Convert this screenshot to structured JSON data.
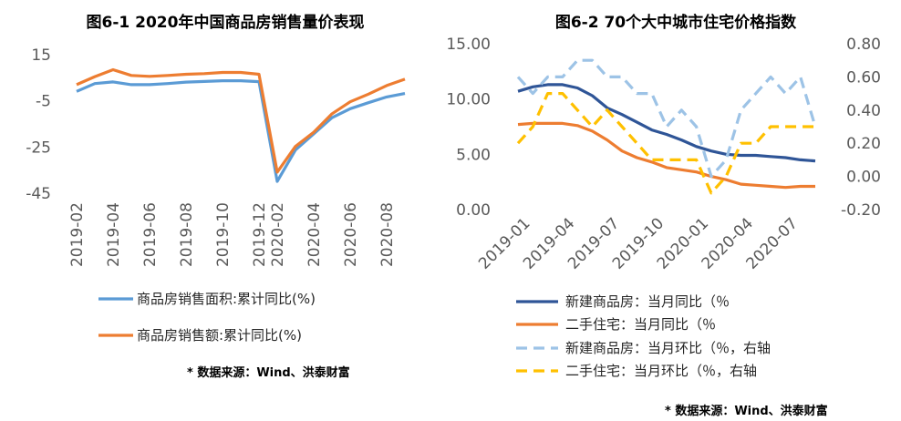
{
  "chart_data": [
    {
      "type": "line",
      "title": "图6-1 2020年中国商品房销售量价表现",
      "categories": [
        "2019-02",
        "2019-03",
        "2019-04",
        "2019-05",
        "2019-06",
        "2019-07",
        "2019-08",
        "2019-09",
        "2019-10",
        "2019-11",
        "2019-12",
        "2020-02",
        "2020-03",
        "2020-04",
        "2020-05",
        "2020-06",
        "2020-07",
        "2020-08",
        "2020-09"
      ],
      "tick_labels": [
        "2019-02",
        "2019-04",
        "2019-06",
        "2019-08",
        "2019-10",
        "2019-12",
        "2020-02",
        "2020-04",
        "2020-06",
        "2020-08"
      ],
      "yticks": [
        "15",
        "-5",
        "-25",
        "-45"
      ],
      "ylim": [
        -45,
        15
      ],
      "series": [
        {
          "name": "商品房销售面积:累计同比(%)",
          "color": "#5B9BD5",
          "values": [
            -0.9,
            2.5,
            3.2,
            2.0,
            2.0,
            2.5,
            3.1,
            3.4,
            3.7,
            3.7,
            3.3,
            -39.9,
            -26.3,
            -19.3,
            -12.3,
            -8.4,
            -5.8,
            -3.3,
            -1.8
          ]
        },
        {
          "name": "商品房销售额:累计同比(%)",
          "color": "#ED7D31",
          "values": [
            2.0,
            5.5,
            8.5,
            6.0,
            5.6,
            6.0,
            6.5,
            6.8,
            7.3,
            7.3,
            6.5,
            -35.9,
            -24.7,
            -18.6,
            -10.6,
            -5.4,
            -2.1,
            1.6,
            4.4
          ]
        }
      ],
      "source": "* 数据来源：Wind、洪泰财富"
    },
    {
      "type": "line",
      "title": "图6-2 70个大中城市住宅价格指数",
      "categories": [
        "2019-01",
        "2019-02",
        "2019-03",
        "2019-04",
        "2019-05",
        "2019-06",
        "2019-07",
        "2019-08",
        "2019-09",
        "2019-10",
        "2019-11",
        "2019-12",
        "2020-01",
        "2020-02",
        "2020-03",
        "2020-04",
        "2020-05",
        "2020-06",
        "2020-07",
        "2020-08",
        "2020-09"
      ],
      "tick_labels": [
        "2019-01",
        "2019-04",
        "2019-07",
        "2019-10",
        "2020-01",
        "2020-04",
        "2020-07"
      ],
      "yticks_left": [
        "15.00",
        "10.00",
        "5.00",
        "0.00"
      ],
      "yticks_right": [
        "0.80",
        "0.60",
        "0.40",
        "0.20",
        "0.00",
        "-0.20"
      ],
      "ylim_left": [
        0,
        15
      ],
      "ylim_right": [
        -0.2,
        0.8
      ],
      "series": [
        {
          "name": "新建商品房：当月同比（％",
          "color": "#2F5597",
          "dash": "solid",
          "axis": "left",
          "values": [
            10.7,
            11.1,
            11.3,
            11.3,
            11.0,
            10.3,
            9.2,
            8.6,
            7.9,
            7.2,
            6.8,
            6.3,
            5.7,
            5.3,
            5.0,
            4.9,
            4.9,
            4.8,
            4.7,
            4.5,
            4.4
          ]
        },
        {
          "name": "二手住宅：当月同比（％",
          "color": "#ED7D31",
          "dash": "solid",
          "axis": "left",
          "values": [
            7.7,
            7.8,
            7.8,
            7.8,
            7.6,
            7.1,
            6.3,
            5.3,
            4.7,
            4.3,
            3.8,
            3.6,
            3.4,
            3.0,
            2.7,
            2.3,
            2.2,
            2.1,
            2.0,
            2.1,
            2.1
          ]
        },
        {
          "name": "新建商品房：当月环比（％，右轴",
          "color": "#9DC3E6",
          "dash": "dashed",
          "axis": "right",
          "values": [
            0.6,
            0.5,
            0.6,
            0.6,
            0.7,
            0.7,
            0.6,
            0.6,
            0.5,
            0.5,
            0.3,
            0.4,
            0.3,
            0.0,
            0.1,
            0.4,
            0.5,
            0.6,
            0.5,
            0.6,
            0.3
          ]
        },
        {
          "name": "二手住宅：当月环比（％，右轴",
          "color": "#FFC000",
          "dash": "dashed",
          "axis": "right",
          "values": [
            0.2,
            0.3,
            0.5,
            0.5,
            0.4,
            0.3,
            0.4,
            0.3,
            0.2,
            0.1,
            0.1,
            0.1,
            0.1,
            -0.1,
            0.0,
            0.2,
            0.2,
            0.3,
            0.3,
            0.3,
            0.3
          ]
        }
      ],
      "source": "* 数据来源：Wind、洪泰财富"
    }
  ]
}
